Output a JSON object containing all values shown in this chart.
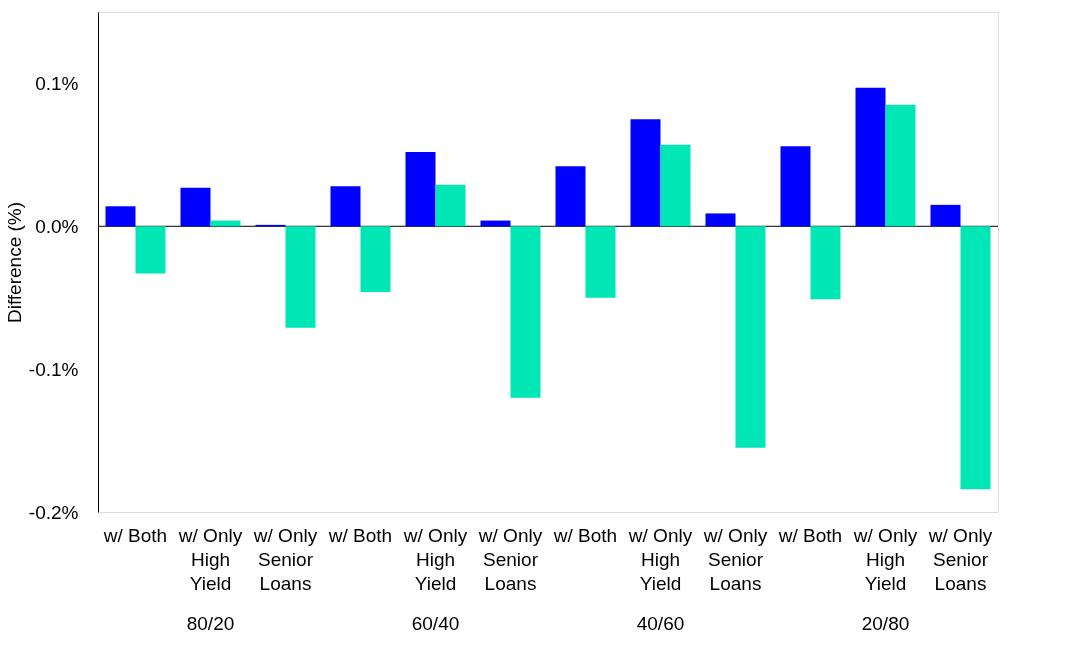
{
  "chart_data": {
    "type": "bar",
    "ylabel": "Difference (%)",
    "categories": [
      "w/ Both",
      "w/ Only\nHigh\nYield",
      "w/ Only\nSenior\nLoans",
      "w/ Both",
      "w/ Only\nHigh\nYield",
      "w/ Only\nSenior\nLoans",
      "w/ Both",
      "w/ Only\nHigh\nYield",
      "w/ Only\nSenior\nLoans",
      "w/ Both",
      "w/ Only\nHigh\nYield",
      "w/ Only\nSenior\nLoans"
    ],
    "series": [
      {
        "color": "#0000ff",
        "values": [
          0.014,
          0.027,
          0.001,
          0.028,
          0.052,
          0.004,
          0.042,
          0.075,
          0.009,
          0.056,
          0.097,
          0.015
        ]
      },
      {
        "color": "#00e6b4",
        "values": [
          -0.033,
          0.004,
          -0.071,
          -0.046,
          0.029,
          -0.12,
          -0.05,
          0.057,
          -0.155,
          -0.051,
          0.085,
          -0.184
        ]
      }
    ],
    "annotations": [
      "80/20",
      "60/40",
      "40/60",
      "20/80"
    ],
    "ylim": [
      -0.2,
      0.15
    ],
    "yticks": [
      {
        "value": 0.1,
        "label": "0.1%"
      },
      {
        "value": 0.0,
        "label": "0.0%"
      },
      {
        "value": -0.1,
        "label": "-0.1%"
      },
      {
        "value": -0.2,
        "label": "-0.2%"
      }
    ],
    "ref_lines": [
      {
        "axis": "y",
        "value": 0
      }
    ],
    "grid": false,
    "legend": false
  }
}
